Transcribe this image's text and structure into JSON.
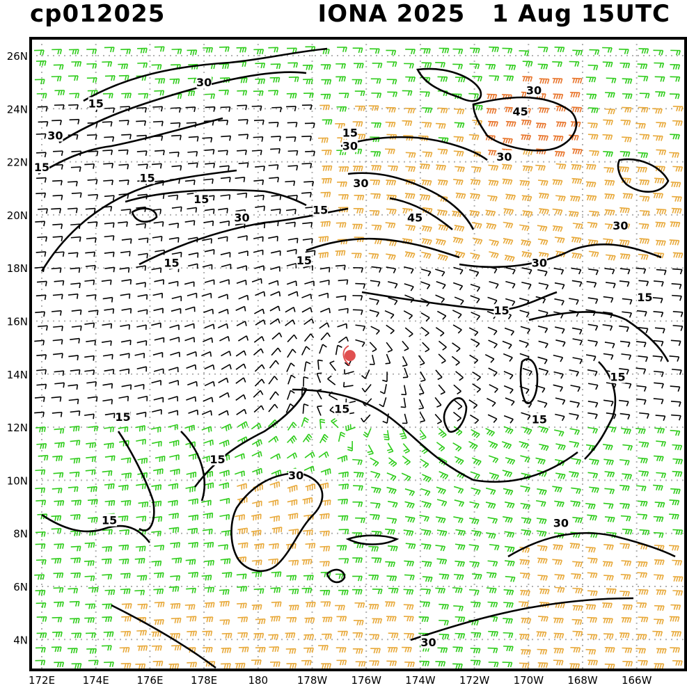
{
  "header": {
    "storm_id": "cp012025",
    "storm_name_time": "IONA 2025   1 Aug 15UTC"
  },
  "map": {
    "lon_labels": [
      "172E",
      "174E",
      "176E",
      "178E",
      "180",
      "178W",
      "176W",
      "174W",
      "172W",
      "170W",
      "168W",
      "166W"
    ],
    "lat_labels": [
      "26N",
      "24N",
      "22N",
      "20N",
      "18N",
      "16N",
      "14N",
      "12N",
      "10N",
      "8N",
      "6N",
      "4N"
    ],
    "storm_center": {
      "lat": 14.7,
      "lon": "176.6W"
    },
    "colors": {
      "calm_barbs": "#000000",
      "moderate_barbs": "#2ecc1a",
      "strong_barbs": "#e8a93a",
      "gale_barbs": "#e8742a",
      "storm_marker": "#e05050",
      "grid": "#b0b0b0"
    },
    "contour_labels": [
      {
        "text": "15",
        "lon": "174E",
        "lat": 24.2
      },
      {
        "text": "30",
        "lon": "178E",
        "lat": 25.0
      },
      {
        "text": "30",
        "lon": "172.5E",
        "lat": 23.0
      },
      {
        "text": "15",
        "lon": "172E",
        "lat": 21.8
      },
      {
        "text": "15",
        "lon": "175.9E",
        "lat": 21.4
      },
      {
        "text": "15",
        "lon": "177.9E",
        "lat": 20.6
      },
      {
        "text": "30",
        "lon": "179.4E",
        "lat": 19.9
      },
      {
        "text": "15",
        "lon": "176.8E",
        "lat": 18.2
      },
      {
        "text": "15",
        "lon": "178.3W",
        "lat": 18.3
      },
      {
        "text": "15",
        "lon": "176.6W",
        "lat": 23.1
      },
      {
        "text": "30",
        "lon": "176.6W",
        "lat": 22.6
      },
      {
        "text": "30",
        "lon": "176.2W",
        "lat": 21.2
      },
      {
        "text": "15",
        "lon": "177.7W",
        "lat": 20.2
      },
      {
        "text": "45",
        "lon": "174.2W",
        "lat": 19.9
      },
      {
        "text": "30",
        "lon": "169.8W",
        "lat": 24.7
      },
      {
        "text": "45",
        "lon": "170.3W",
        "lat": 23.9
      },
      {
        "text": "30",
        "lon": "170.9W",
        "lat": 22.2
      },
      {
        "text": "30",
        "lon": "166.6W",
        "lat": 19.6
      },
      {
        "text": "30",
        "lon": "169.6W",
        "lat": 18.2
      },
      {
        "text": "15",
        "lon": "171W",
        "lat": 16.4
      },
      {
        "text": "15",
        "lon": "165.7W",
        "lat": 16.9
      },
      {
        "text": "15",
        "lon": "166.7W",
        "lat": 13.9
      },
      {
        "text": "15",
        "lon": "169.6W",
        "lat": 12.3
      },
      {
        "text": "15",
        "lon": "176.9W",
        "lat": 12.7
      },
      {
        "text": "15",
        "lon": "175E",
        "lat": 12.4
      },
      {
        "text": "15",
        "lon": "178.5E",
        "lat": 10.8
      },
      {
        "text": "30",
        "lon": "178.6W",
        "lat": 10.2
      },
      {
        "text": "15",
        "lon": "174.5E",
        "lat": 8.5
      },
      {
        "text": "30",
        "lon": "168.8W",
        "lat": 8.4
      },
      {
        "text": "30",
        "lon": "173.7W",
        "lat": 3.9
      }
    ]
  }
}
